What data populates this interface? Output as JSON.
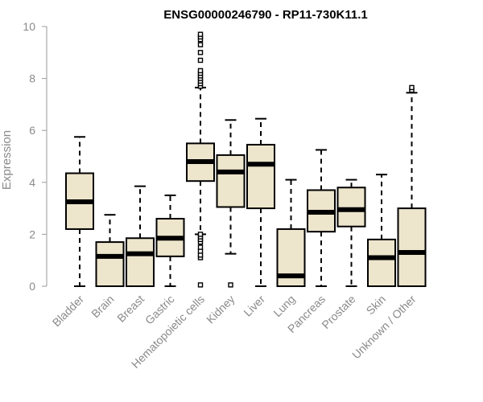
{
  "chart_data": {
    "type": "boxplot",
    "title": "ENSG00000246790 - RP11-730K11.1",
    "xlabel": "",
    "ylabel": "Expression",
    "ylim": [
      0,
      10
    ],
    "yticks": [
      0,
      2,
      4,
      6,
      8,
      10
    ],
    "box_color": "#ede5cc",
    "categories": [
      "Bladder",
      "Brain",
      "Breast",
      "Gastric",
      "Hematopoietic cells",
      "Kidney",
      "Liver",
      "Lung",
      "Pancreas",
      "Prostate",
      "Skin",
      "Unknown / Other"
    ],
    "series": [
      {
        "name": "Bladder",
        "min": 0,
        "q1": 2.2,
        "median": 3.25,
        "q3": 4.35,
        "max": 5.75,
        "outliers": []
      },
      {
        "name": "Brain",
        "min": 0,
        "q1": 0,
        "median": 1.15,
        "q3": 1.7,
        "max": 2.75,
        "outliers": []
      },
      {
        "name": "Breast",
        "min": 0,
        "q1": 0,
        "median": 1.25,
        "q3": 1.85,
        "max": 3.85,
        "outliers": []
      },
      {
        "name": "Gastric",
        "min": 0,
        "q1": 1.15,
        "median": 1.85,
        "q3": 2.6,
        "max": 3.5,
        "outliers": []
      },
      {
        "name": "Hematopoietic cells",
        "min": 2.0,
        "q1": 4.05,
        "median": 4.8,
        "q3": 5.5,
        "max": 7.65,
        "outliers": [
          0.05,
          1.1,
          1.2,
          1.35,
          1.5,
          1.7,
          1.8,
          1.9,
          2.0,
          7.7,
          7.8,
          7.9,
          8.0,
          8.1,
          8.2,
          8.3,
          8.7,
          9.0,
          9.3,
          9.5,
          9.6,
          9.7
        ]
      },
      {
        "name": "Kidney",
        "min": 1.25,
        "q1": 3.05,
        "median": 4.4,
        "q3": 5.05,
        "max": 6.4,
        "outliers": [
          0.05
        ]
      },
      {
        "name": "Liver",
        "min": 0,
        "q1": 3.0,
        "median": 4.7,
        "q3": 5.45,
        "max": 6.45,
        "outliers": []
      },
      {
        "name": "Lung",
        "min": 0,
        "q1": 0,
        "median": 0.4,
        "q3": 2.2,
        "max": 4.1,
        "outliers": []
      },
      {
        "name": "Pancreas",
        "min": 0,
        "q1": 2.1,
        "median": 2.85,
        "q3": 3.7,
        "max": 5.25,
        "outliers": []
      },
      {
        "name": "Prostate",
        "min": 0,
        "q1": 2.3,
        "median": 2.95,
        "q3": 3.8,
        "max": 4.1,
        "outliers": []
      },
      {
        "name": "Skin",
        "min": 0,
        "q1": 0,
        "median": 1.1,
        "q3": 1.8,
        "max": 4.3,
        "outliers": []
      },
      {
        "name": "Unknown / Other",
        "min": 0,
        "q1": 0,
        "median": 1.3,
        "q3": 3.0,
        "max": 7.45,
        "outliers": [
          7.55,
          7.65
        ]
      }
    ]
  }
}
